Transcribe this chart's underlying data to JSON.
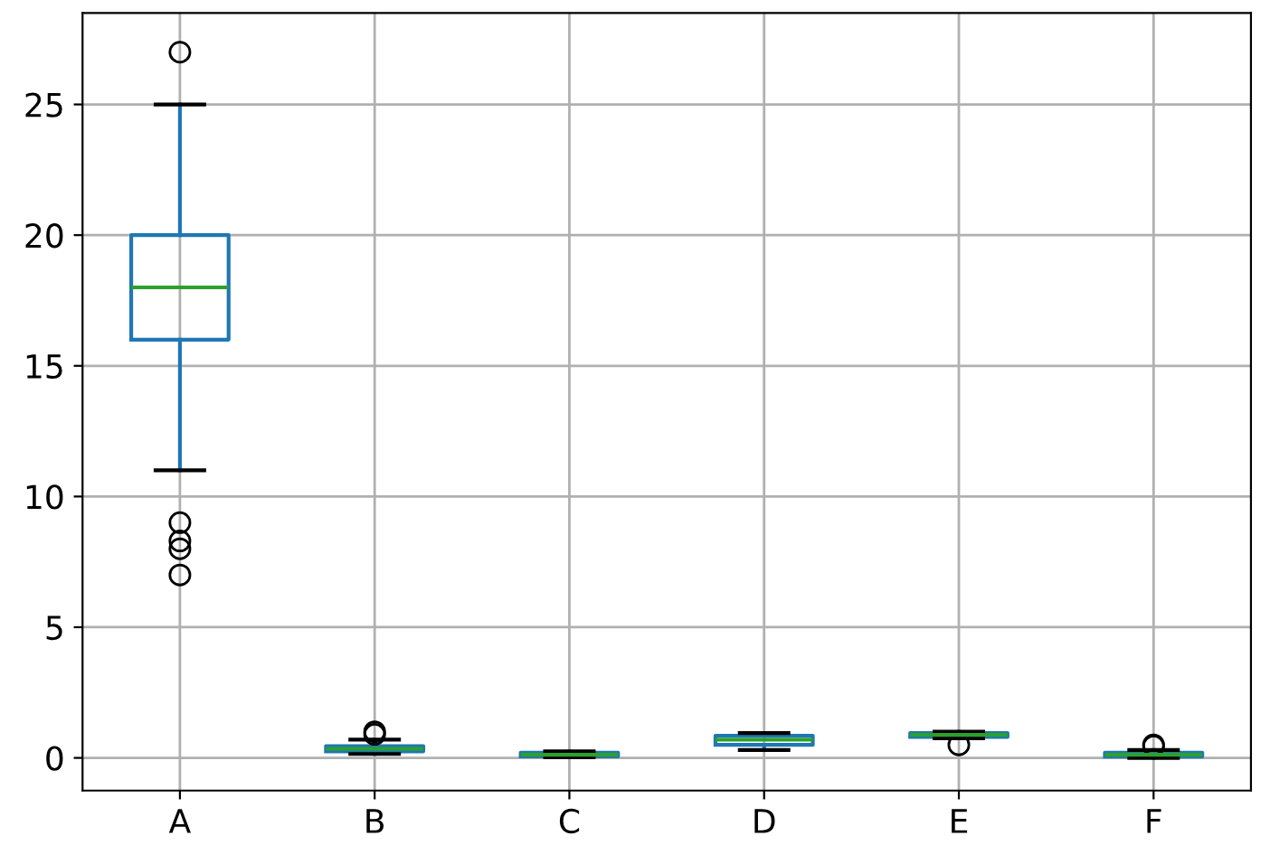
{
  "chart_data": {
    "type": "box",
    "categories": [
      "A",
      "B",
      "C",
      "D",
      "E",
      "F"
    ],
    "boxes": [
      {
        "low": 11,
        "q1": 16,
        "median": 18,
        "q3": 20,
        "high": 25,
        "outliers": [
          27,
          9,
          8.3,
          8,
          7
        ]
      },
      {
        "low": 0.15,
        "q1": 0.25,
        "median": 0.35,
        "q3": 0.45,
        "high": 0.7,
        "outliers": [
          0.9,
          1.0
        ]
      },
      {
        "low": 0.02,
        "q1": 0.06,
        "median": 0.12,
        "q3": 0.2,
        "high": 0.25
      },
      {
        "low": 0.3,
        "q1": 0.5,
        "median": 0.7,
        "q3": 0.85,
        "high": 0.95
      },
      {
        "low": 0.75,
        "q1": 0.8,
        "median": 0.88,
        "q3": 0.95,
        "high": 1.0,
        "outliers": [
          0.5
        ]
      },
      {
        "low": 0.0,
        "q1": 0.05,
        "median": 0.12,
        "q3": 0.2,
        "high": 0.3,
        "outliers": [
          0.45,
          0.5
        ]
      }
    ],
    "ylim": [
      -1.25,
      28.5
    ],
    "yticks": [
      0,
      5,
      10,
      15,
      20,
      25
    ],
    "grid": true
  }
}
